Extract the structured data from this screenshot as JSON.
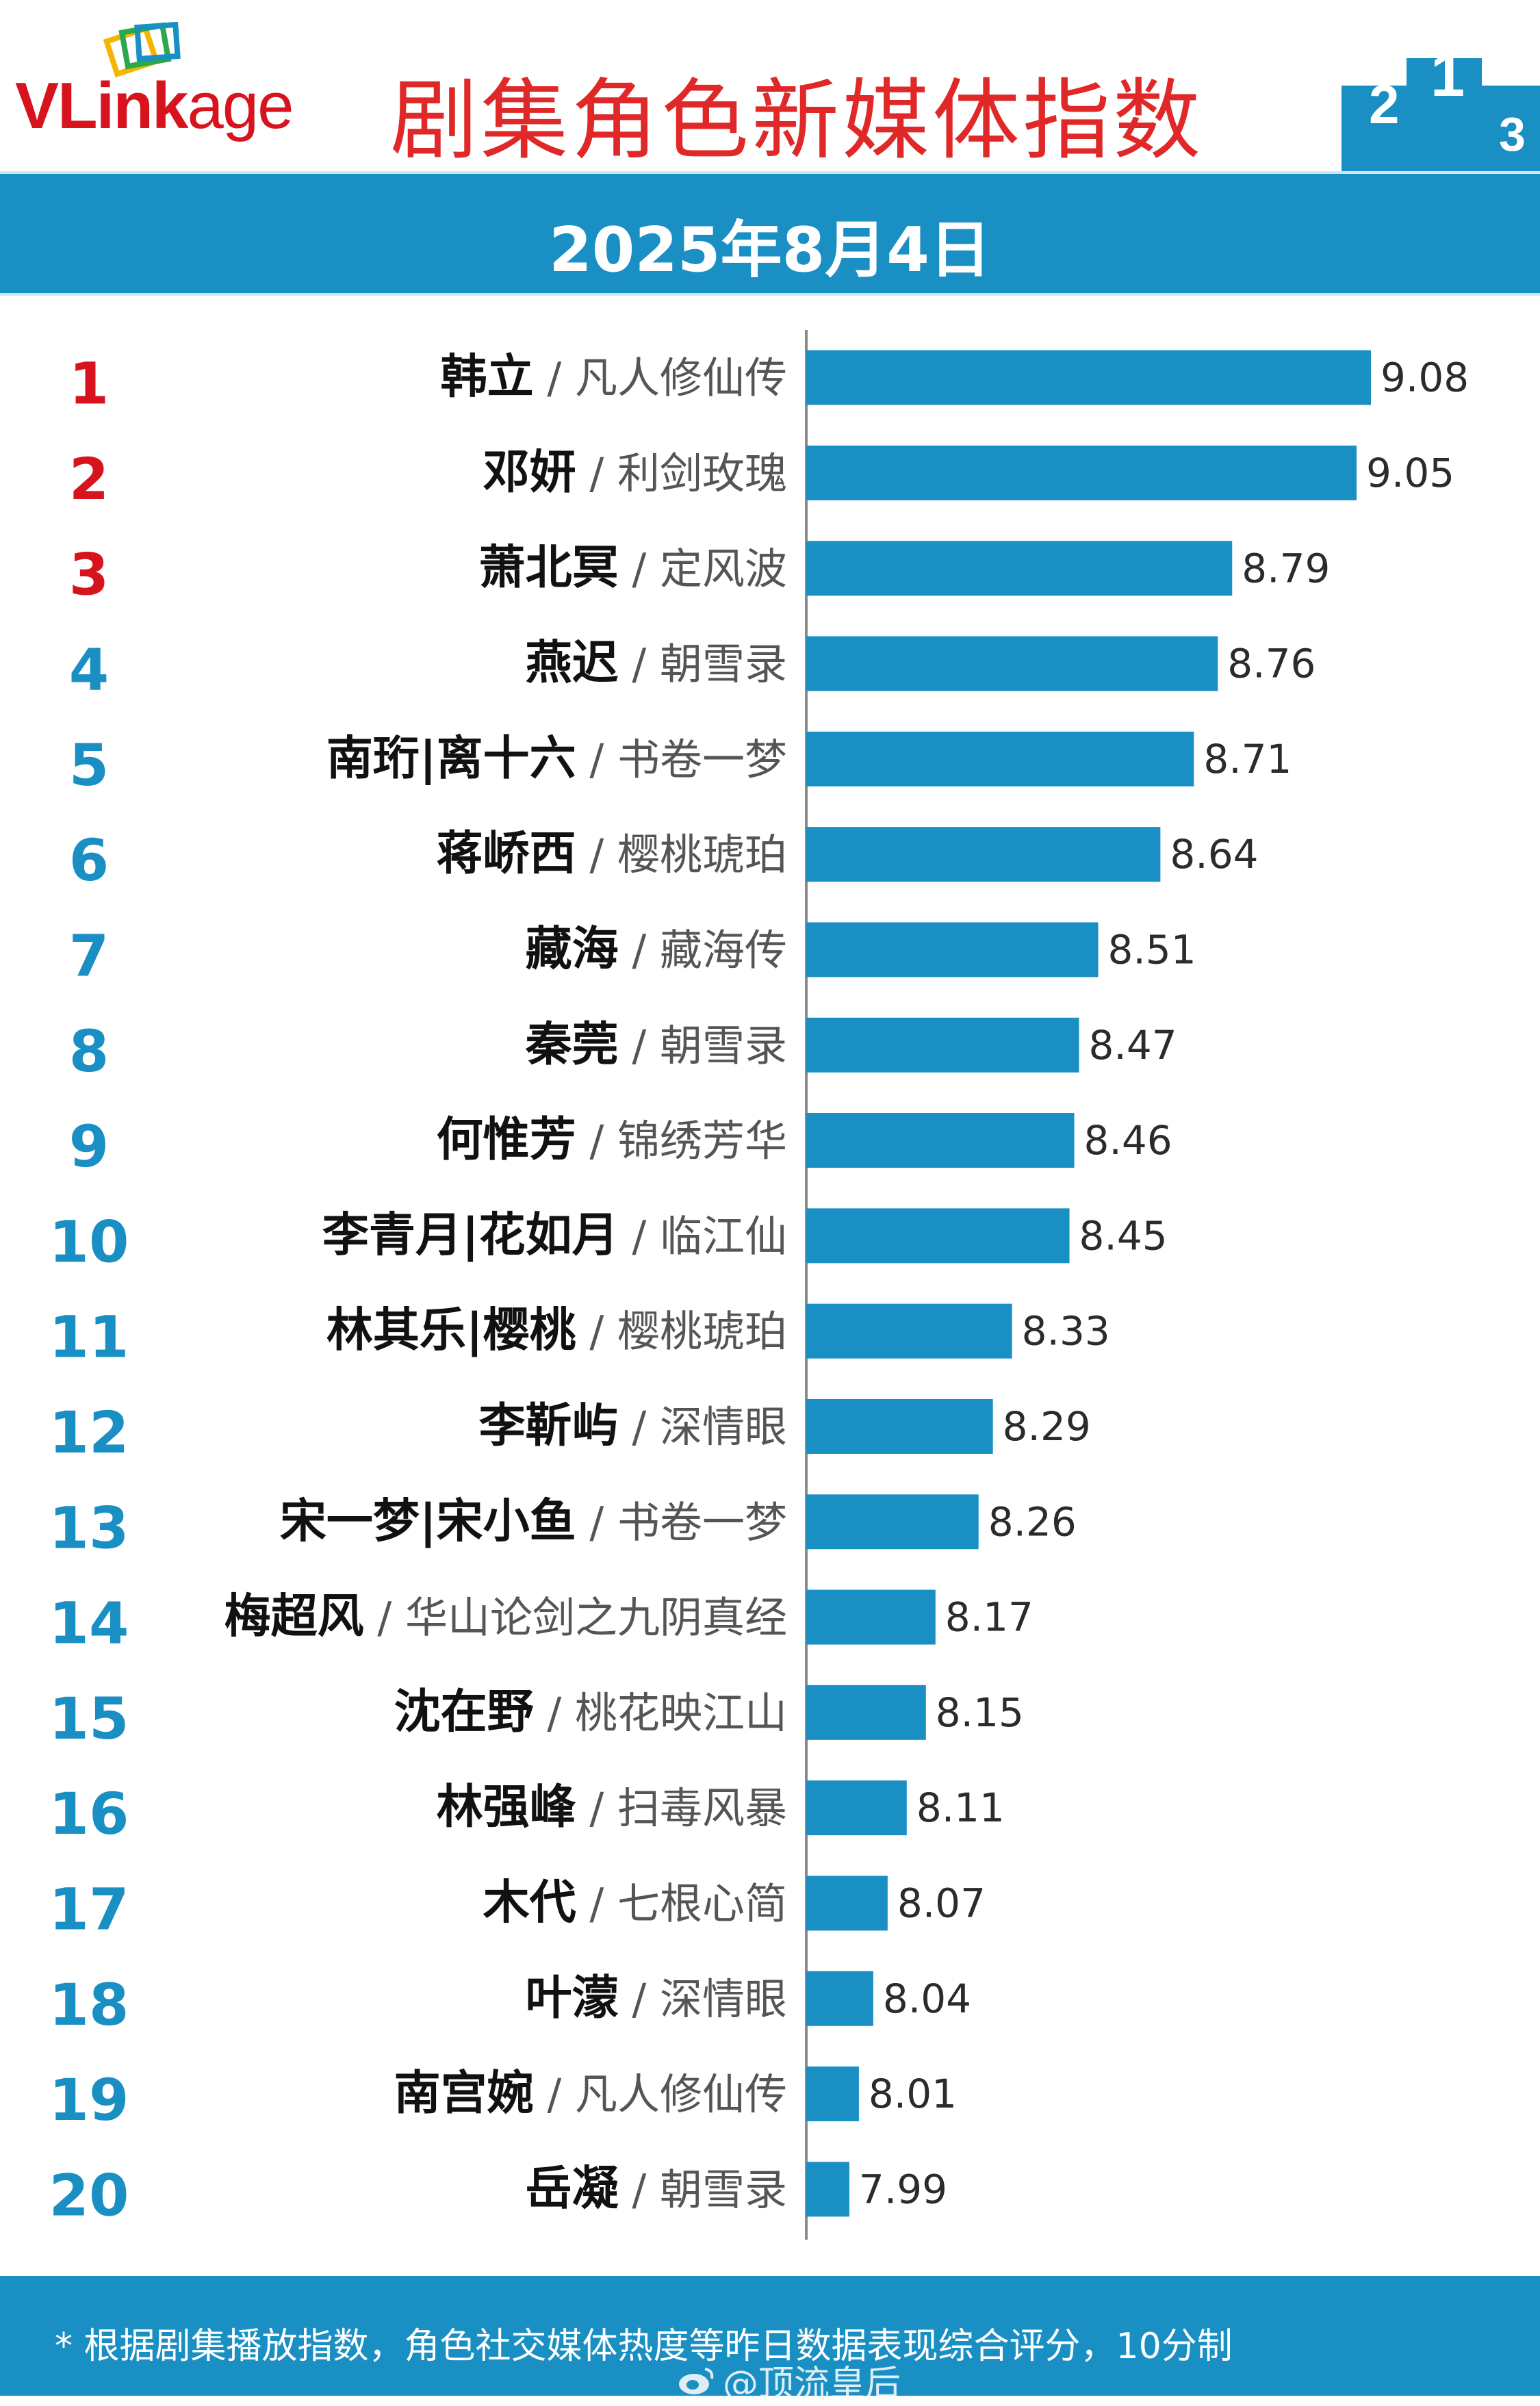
{
  "header": {
    "logo_text_a": "VLink",
    "logo_text_b": "age",
    "title": "剧集角色新媒体指数",
    "date": "2025年8月4日",
    "podium_labels": [
      "2",
      "1",
      "3"
    ]
  },
  "colors": {
    "bar": "#1a8fc3",
    "top3_rank": "#d7141e",
    "rank": "#1a8fc3",
    "title": "#e02828"
  },
  "chart_data": {
    "type": "bar",
    "orientation": "horizontal",
    "title": "剧集角色新媒体指数",
    "categories": [
      {
        "rank": "1",
        "name": "韩立",
        "drama": "凡人修仙传"
      },
      {
        "rank": "2",
        "name": "邓妍",
        "drama": "利剑玫瑰"
      },
      {
        "rank": "3",
        "name": "萧北冥",
        "drama": "定风波"
      },
      {
        "rank": "4",
        "name": "燕迟",
        "drama": "朝雪录"
      },
      {
        "rank": "5",
        "name": "南珩|离十六",
        "drama": "书卷一梦"
      },
      {
        "rank": "6",
        "name": "蒋峤西",
        "drama": "樱桃琥珀"
      },
      {
        "rank": "7",
        "name": "藏海",
        "drama": "藏海传"
      },
      {
        "rank": "8",
        "name": "秦莞",
        "drama": "朝雪录"
      },
      {
        "rank": "9",
        "name": "何惟芳",
        "drama": "锦绣芳华"
      },
      {
        "rank": "10",
        "name": "李青月|花如月",
        "drama": "临江仙"
      },
      {
        "rank": "11",
        "name": "林其乐|樱桃",
        "drama": "樱桃琥珀"
      },
      {
        "rank": "12",
        "name": "李靳屿",
        "drama": "深情眼"
      },
      {
        "rank": "13",
        "name": "宋一梦|宋小鱼",
        "drama": "书卷一梦"
      },
      {
        "rank": "14",
        "name": "梅超风",
        "drama": "华山论剑之九阴真经"
      },
      {
        "rank": "15",
        "name": "沈在野",
        "drama": "桃花映江山"
      },
      {
        "rank": "16",
        "name": "林强峰",
        "drama": "扫毒风暴"
      },
      {
        "rank": "17",
        "name": "木代",
        "drama": "七根心简"
      },
      {
        "rank": "18",
        "name": "叶濛",
        "drama": "深情眼"
      },
      {
        "rank": "19",
        "name": "南宫婉",
        "drama": "凡人修仙传"
      },
      {
        "rank": "20",
        "name": "岳凝",
        "drama": "朝雪录"
      }
    ],
    "values": [
      9.08,
      9.05,
      8.79,
      8.76,
      8.71,
      8.64,
      8.51,
      8.47,
      8.46,
      8.45,
      8.33,
      8.29,
      8.26,
      8.17,
      8.15,
      8.11,
      8.07,
      8.04,
      8.01,
      7.99
    ],
    "labels": [
      "9.08",
      "9.05",
      "8.79",
      "8.76",
      "8.71",
      "8.64",
      "8.51",
      "8.47",
      "8.46",
      "8.45",
      "8.33",
      "8.29",
      "8.26",
      "8.17",
      "8.15",
      "8.11",
      "8.07",
      "8.04",
      "8.01",
      "7.99"
    ],
    "separator": "/",
    "xlim": [
      7.9,
      9.08
    ],
    "grid": false,
    "legend": "none"
  },
  "footer": {
    "note": "* 根据剧集播放指数，角色社交媒体热度等昨日数据表现综合评分，10分制",
    "watermark": "@顶流皇后"
  }
}
